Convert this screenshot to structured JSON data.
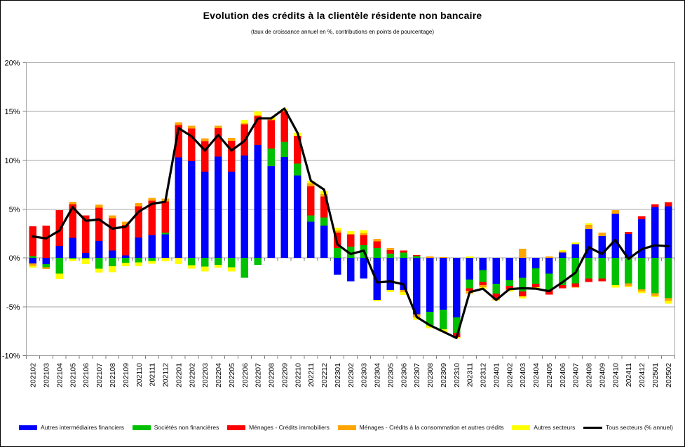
{
  "title": "Evolution des crédits à la clientèle résidente non bancaire",
  "subtitle": "(taux de croissance annuel en %, contributions en points de pourcentage)",
  "chart_data": {
    "type": "bar",
    "stacked": true,
    "grid": true,
    "legend_position": "bottom",
    "ylim": [
      -10,
      20
    ],
    "ytick_step": 5,
    "ytick_values": [
      20,
      15,
      10,
      5,
      0,
      -5,
      -10
    ],
    "ytick_labels": [
      "20%",
      "15%",
      "10%",
      "5%",
      "0%",
      "-5%",
      "-10%"
    ],
    "grid_color": "#A6A6A6",
    "tick_color": "#7f7f7f",
    "categories": [
      "202102",
      "202103",
      "202104",
      "202105",
      "202106",
      "202107",
      "202108",
      "202109",
      "202110",
      "202111",
      "202112",
      "202201",
      "202202",
      "202203",
      "202204",
      "202205",
      "202206",
      "202207",
      "202208",
      "202209",
      "202210",
      "202211",
      "202212",
      "202301",
      "202302",
      "202303",
      "202304",
      "202305",
      "202306",
      "202307",
      "202308",
      "202309",
      "202310",
      "202311",
      "202312",
      "202401",
      "202402",
      "202403",
      "202404",
      "202405",
      "202406",
      "202407",
      "202408",
      "202409",
      "202410",
      "202411",
      "202412",
      "202501",
      "202502"
    ],
    "series": [
      {
        "name": "Autres intermédiaires financiers",
        "color": "#0000FF",
        "values": [
          -0.55,
          -0.65,
          1.25,
          2.05,
          0.5,
          1.75,
          0.75,
          0.25,
          2.1,
          2.35,
          2.4,
          10.3,
          9.9,
          8.85,
          10.4,
          8.85,
          10.5,
          11.55,
          9.4,
          10.35,
          8.45,
          3.7,
          3.3,
          -1.7,
          -2.4,
          -2.1,
          -4.3,
          -3.3,
          -3.3,
          -5.75,
          -5.5,
          -5.3,
          -6.1,
          -2.2,
          -1.25,
          -2.65,
          -2.3,
          -2.05,
          -1.05,
          -1.6,
          0.55,
          1.4,
          2.95,
          2.25,
          4.55,
          2.45,
          3.95,
          5.2,
          5.3
        ]
      },
      {
        "name": "Sociétés non financières",
        "color": "#00C000",
        "values": [
          0.2,
          -0.3,
          -1.6,
          -0.1,
          -0.05,
          -1.1,
          -0.85,
          -0.5,
          -0.45,
          -0.3,
          0.2,
          0,
          -0.75,
          -0.9,
          -0.7,
          -0.95,
          -2.05,
          -0.7,
          1.8,
          1.55,
          1.2,
          0.65,
          0.85,
          1.0,
          1.15,
          1.3,
          1.0,
          0.45,
          0.55,
          0.2,
          -1.4,
          -2.0,
          -1.55,
          -0.9,
          -1.2,
          -1.0,
          -0.55,
          -1.4,
          -1.6,
          -1.7,
          -2.8,
          -2.6,
          -2.1,
          -2.1,
          -2.8,
          -2.6,
          -3.2,
          -3.6,
          -4.1
        ]
      },
      {
        "name": "Ménages - Crédits immobiliers",
        "color": "#FF0000",
        "values": [
          3.05,
          3.3,
          3.65,
          3.45,
          3.85,
          3.4,
          3.3,
          3.15,
          3.2,
          3.5,
          3.2,
          3.3,
          3.35,
          3.1,
          2.9,
          3.15,
          3.2,
          2.95,
          2.9,
          3.1,
          2.85,
          3.0,
          2.15,
          1.6,
          1.25,
          1.05,
          0.7,
          0.35,
          0.2,
          0.1,
          0,
          0,
          -0.45,
          -0.25,
          -0.35,
          -0.5,
          -0.4,
          -0.5,
          -0.35,
          -0.45,
          -0.3,
          -0.35,
          -0.35,
          -0.3,
          0,
          0.2,
          0.35,
          0.3,
          0.4
        ]
      },
      {
        "name": "Ménages - Crédits à la consommation et autres crédits",
        "color": "#FFA500",
        "values": [
          -0.27,
          -0.2,
          0,
          0.25,
          0,
          0.3,
          0.3,
          0.3,
          0.3,
          0.3,
          0.28,
          0.3,
          0.3,
          0.3,
          0.25,
          0.3,
          0.1,
          0.15,
          0.1,
          0,
          0,
          0.3,
          0.25,
          0.2,
          0,
          0.2,
          0.25,
          0.2,
          -0.2,
          -0.35,
          0.15,
          0.1,
          0,
          -0.3,
          -0.2,
          -0.15,
          0,
          0.95,
          0,
          0.15,
          0.1,
          -0.1,
          0.45,
          0.35,
          0.35,
          -0.3,
          -0.25,
          -0.3,
          -0.3
        ]
      },
      {
        "name": "Autres secteurs",
        "color": "#FFFF00",
        "values": [
          -0.18,
          0,
          -0.55,
          -0.2,
          -0.6,
          -0.4,
          -0.6,
          -0.35,
          -0.4,
          -0.3,
          -0.35,
          -0.65,
          -0.35,
          -0.5,
          -0.3,
          -0.45,
          0.35,
          0.35,
          0.2,
          0.3,
          0.33,
          0.25,
          0.3,
          0.3,
          0.35,
          0.3,
          -0.15,
          -0.2,
          -0.3,
          -0.25,
          -0.3,
          -0.3,
          -0.15,
          0.15,
          -0.15,
          -0.05,
          -0.2,
          -0.2,
          -0.2,
          0,
          0.15,
          0.2,
          0.15,
          0,
          -0.25,
          -0.1,
          -0.15,
          -0.1,
          -0.3
        ]
      }
    ],
    "line_series": {
      "name": "Tous secteurs (% annuel)",
      "color": "#000000",
      "values": [
        2.2,
        2.0,
        2.8,
        5.2,
        3.8,
        3.95,
        3.0,
        3.2,
        4.75,
        5.55,
        5.75,
        13.3,
        12.45,
        11.0,
        12.6,
        11.0,
        12.0,
        14.3,
        14.3,
        15.3,
        12.8,
        7.9,
        7.0,
        1.4,
        0.4,
        0.75,
        -2.5,
        -2.4,
        -2.7,
        -6.05,
        -6.9,
        -7.55,
        -8.2,
        -3.5,
        -3.15,
        -4.3,
        -3.2,
        -3.1,
        -3.15,
        -3.4,
        -2.5,
        -1.5,
        1.1,
        0.4,
        1.85,
        -0.1,
        0.9,
        1.3,
        1.2
      ]
    }
  }
}
